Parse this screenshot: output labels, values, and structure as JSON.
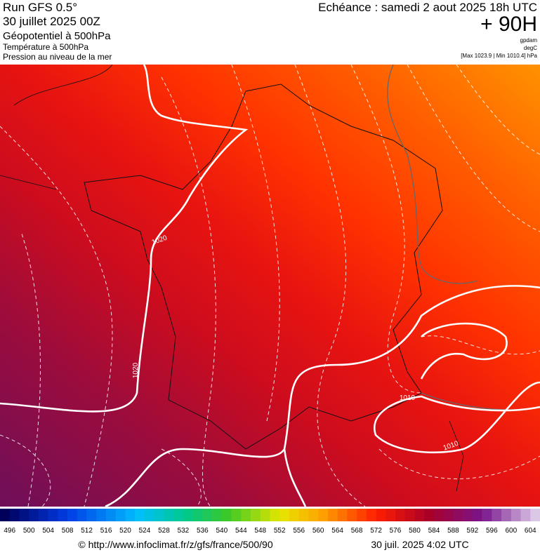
{
  "header": {
    "run": "Run GFS 0.5°",
    "date": "30 juillet 2025 00Z",
    "field": "Géopotentiel à 500hPa",
    "field2": "Température à 500hPa",
    "field3": "Pression au niveau de la mer",
    "echeance": "Echéance : samedi 2 aout 2025 18h UTC",
    "lead": "+ 90H",
    "unit1": "gpdam",
    "unit2": "degC",
    "range": "[Max 1023.9 | Min 1010.4] hPa"
  },
  "map": {
    "contour_labels": [
      "1020",
      "1020",
      "1010",
      "1010"
    ]
  },
  "colorbar": {
    "labels": [
      496,
      500,
      504,
      508,
      512,
      516,
      520,
      524,
      528,
      532,
      536,
      540,
      544,
      548,
      552,
      556,
      560,
      564,
      568,
      572,
      576,
      580,
      584,
      588,
      592,
      596,
      600,
      604
    ]
  },
  "footer": {
    "source": "© http://www.infoclimat.fr/z/gfs/france/500/90",
    "timestamp": "30 juil. 2025  4:02 UTC"
  }
}
